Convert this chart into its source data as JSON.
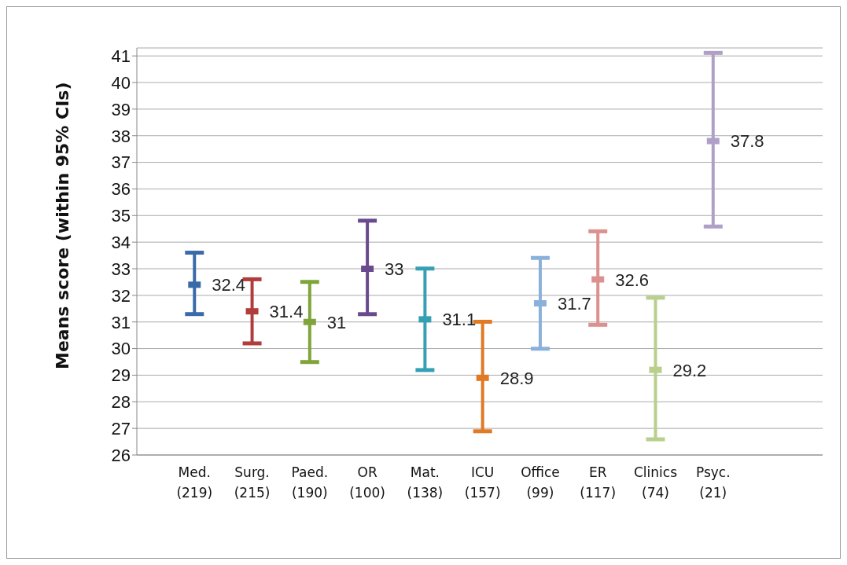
{
  "chart_data": {
    "type": "scatter",
    "ylabel": "Means score (within 95% CIs)",
    "categories": [
      "Med.\n(219)",
      "Surg.\n(215)",
      "Paed.\n(190)",
      "OR\n(100)",
      "Mat.\n(138)",
      "ICU\n(157)",
      "Office\n(99)",
      "ER\n(117)",
      "Clinics\n(74)",
      "Psyc.\n(21)"
    ],
    "values": [
      32.4,
      31.4,
      31,
      33,
      31.1,
      28.9,
      31.7,
      32.6,
      29.2,
      37.8
    ],
    "errors": [
      [
        31.3,
        33.6
      ],
      [
        30.2,
        32.6
      ],
      [
        29.5,
        32.5
      ],
      [
        31.3,
        34.8
      ],
      [
        29.2,
        33.0
      ],
      [
        26.9,
        31.0
      ],
      [
        30.0,
        33.4
      ],
      [
        30.9,
        34.4
      ],
      [
        26.6,
        31.9
      ],
      [
        34.6,
        41.1
      ]
    ],
    "colors": [
      "#3a6aa8",
      "#b03c3c",
      "#7fa53a",
      "#6a4a8e",
      "#35a0b4",
      "#e07a25",
      "#8ab0dc",
      "#dd9090",
      "#b8d08c",
      "#b0a0c8"
    ],
    "ylim": [
      26,
      41.3
    ],
    "yticks": [
      26,
      27,
      28,
      29,
      30,
      31,
      32,
      33,
      34,
      35,
      36,
      37,
      38,
      39,
      40,
      41
    ],
    "grid": "y",
    "data_labels": true
  }
}
